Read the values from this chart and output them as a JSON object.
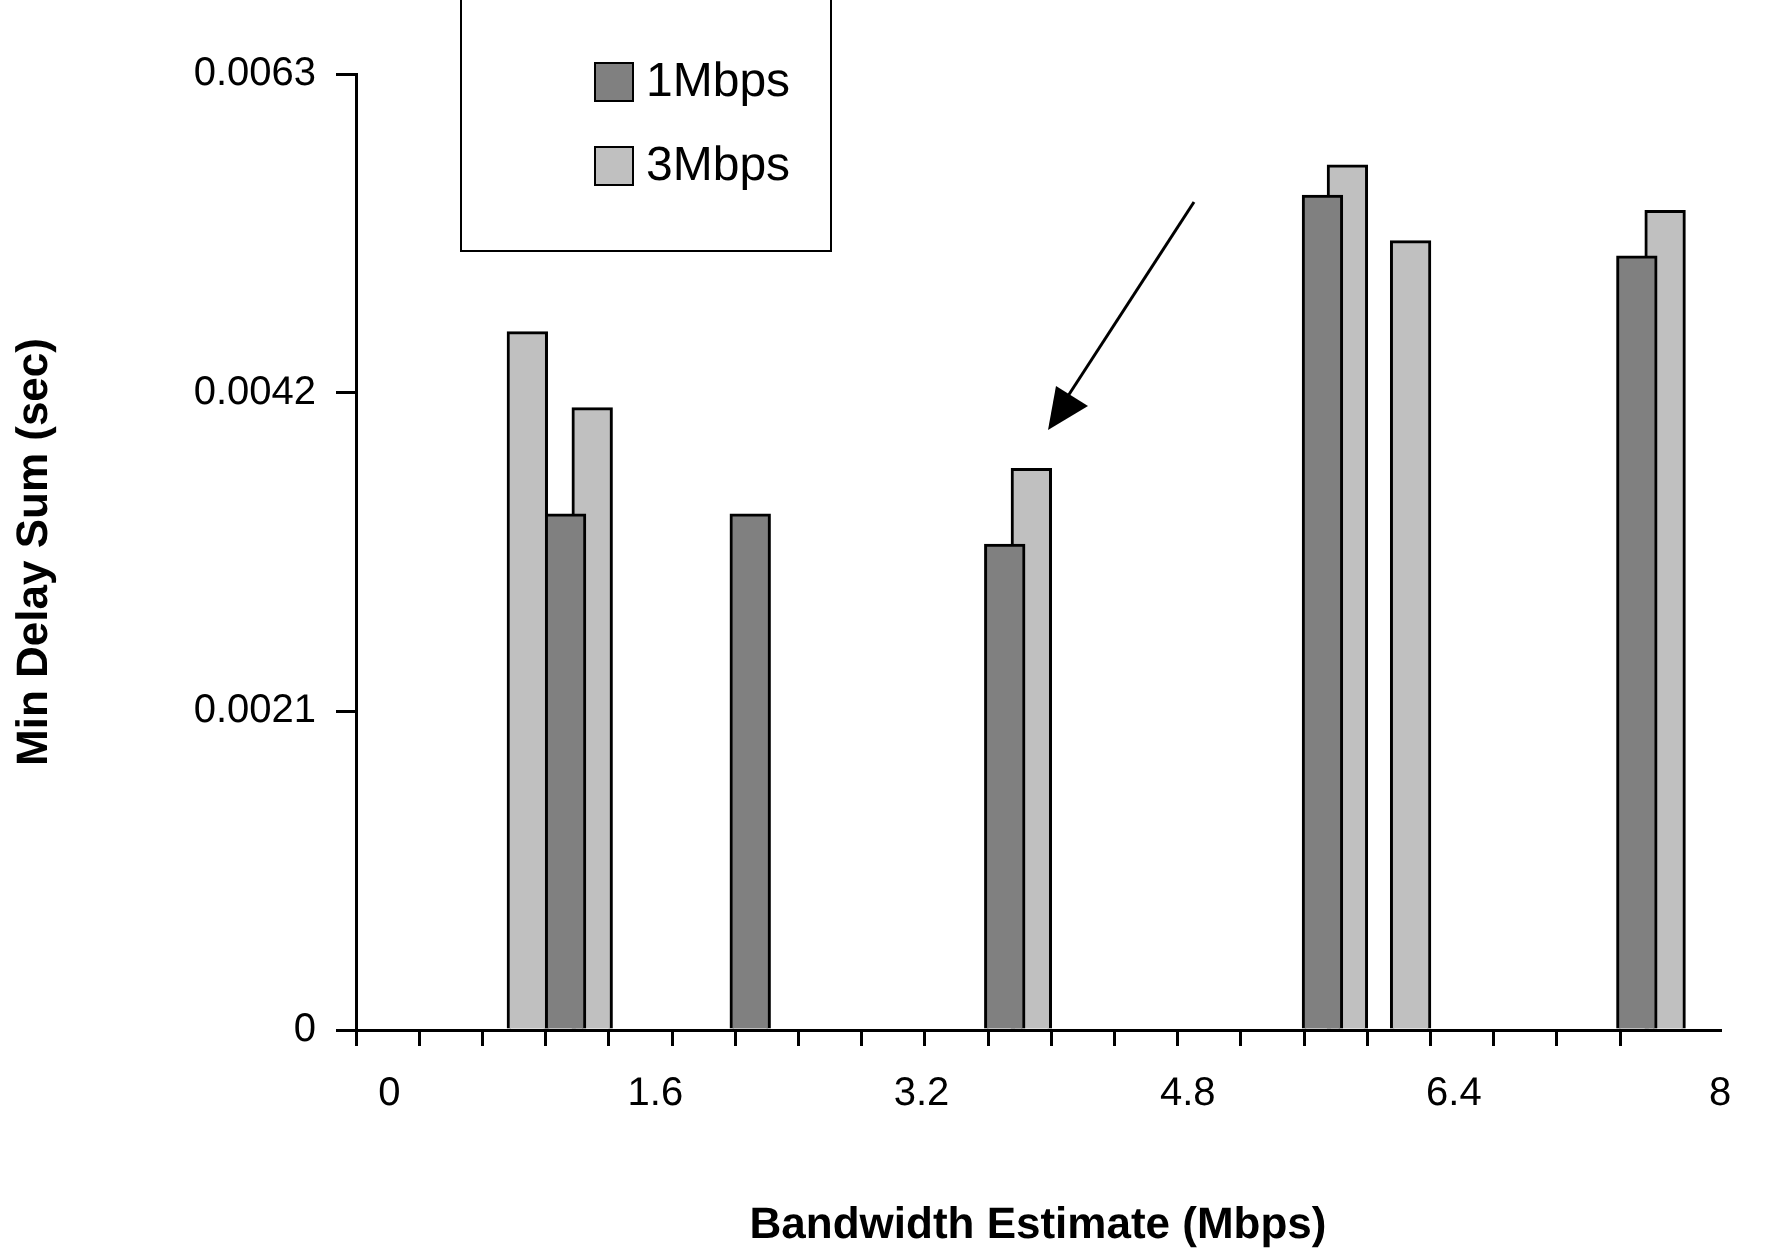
{
  "chart_data": {
    "type": "bar",
    "xlabel": "Bandwidth Estimate (Mbps)",
    "ylabel": "Min Delay Sum (sec)",
    "xlim": [
      -0.2,
      8
    ],
    "ylim": [
      0,
      0.0063
    ],
    "xticks": [
      {
        "value": -0.2,
        "label": null
      },
      {
        "value": 0,
        "label": "0"
      },
      {
        "value": 0.18,
        "label": null
      },
      {
        "value": 0.56,
        "label": null
      },
      {
        "value": 0.94,
        "label": null
      },
      {
        "value": 1.32,
        "label": null
      },
      {
        "value": 1.6,
        "label": "1.6"
      },
      {
        "value": 1.7,
        "label": null
      },
      {
        "value": 2.08,
        "label": null
      },
      {
        "value": 2.46,
        "label": null
      },
      {
        "value": 2.84,
        "label": null
      },
      {
        "value": 3.2,
        "label": "3.2"
      },
      {
        "value": 3.22,
        "label": null
      },
      {
        "value": 3.6,
        "label": null
      },
      {
        "value": 3.98,
        "label": null
      },
      {
        "value": 4.36,
        "label": null
      },
      {
        "value": 4.74,
        "label": null
      },
      {
        "value": 4.8,
        "label": "4.8"
      },
      {
        "value": 5.12,
        "label": null
      },
      {
        "value": 5.5,
        "label": null
      },
      {
        "value": 5.88,
        "label": null
      },
      {
        "value": 6.26,
        "label": null
      },
      {
        "value": 6.4,
        "label": "6.4"
      },
      {
        "value": 6.64,
        "label": null
      },
      {
        "value": 7.02,
        "label": null
      },
      {
        "value": 7.4,
        "label": null
      },
      8
    ],
    "yticks": [
      0,
      0.0021,
      0.0042,
      0.0063
    ],
    "legend": "top left",
    "grid": false,
    "series": [
      {
        "name": "1Mbps",
        "color": "#808080",
        "x": [
          1.06,
          2.17,
          3.7,
          5.61,
          7.5
        ],
        "values": [
          0.0034,
          0.0034,
          0.0032,
          0.0055,
          0.0051
        ]
      },
      {
        "name": "3Mbps",
        "color": "#c0c0c0",
        "x": [
          0.83,
          1.22,
          3.86,
          5.76,
          6.14,
          7.67
        ],
        "values": [
          0.0046,
          0.0041,
          0.0037,
          0.0057,
          0.0052,
          0.0054
        ]
      }
    ]
  }
}
